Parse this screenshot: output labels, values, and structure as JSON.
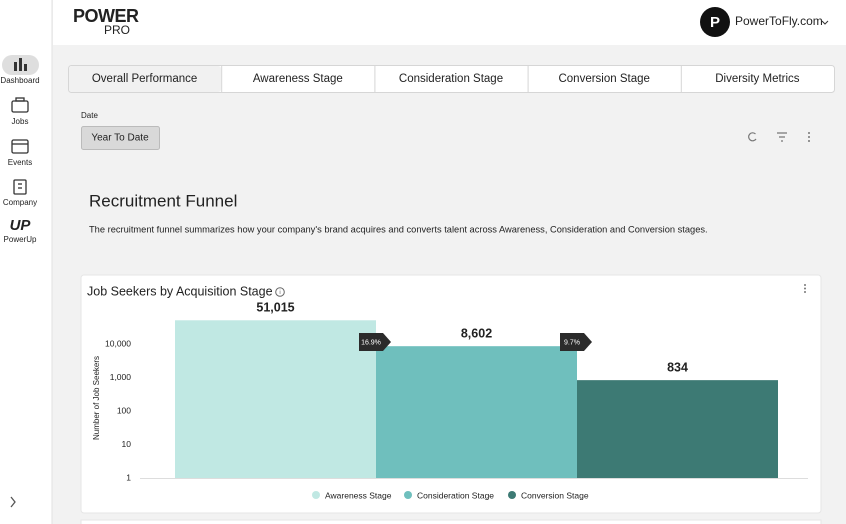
{
  "header": {
    "logo_top": "POWER",
    "logo_bottom": "PRO",
    "avatar": "P",
    "account": "PowerToFly.com"
  },
  "sidebar": {
    "items": [
      "Dashboard",
      "Jobs",
      "Events",
      "Company",
      "PowerUp"
    ]
  },
  "tabs": [
    "Overall Performance",
    "Awareness Stage",
    "Consideration Stage",
    "Conversion Stage",
    "Diversity Metrics"
  ],
  "filter": {
    "label": "Date",
    "value": "Year To Date"
  },
  "section": {
    "title": "Recruitment Funnel",
    "description": "The recruitment funnel summarizes how your company's brand acquires and converts talent across Awareness, Consideration and Conversion stages."
  },
  "chart_data": {
    "type": "bar",
    "title": "Job Seekers by Acquisition Stage",
    "y_label": "Number of Job Seekers",
    "categories": [
      "Awareness Stage",
      "Consideration Stage",
      "Conversion Stage"
    ],
    "values": [
      51015,
      8602,
      834
    ],
    "value_labels": [
      "51,015",
      "8,602",
      "834"
    ],
    "colors": [
      "#c0e8e3",
      "#6fbfbd",
      "#3d7a74"
    ],
    "conversion_rates": [
      16.9,
      9.7
    ],
    "conversion_rate_labels": [
      "16.9%",
      "9.7%"
    ],
    "log_scale": true,
    "grid": false,
    "ylim": [
      1,
      100000
    ],
    "yticks": [
      1,
      10,
      100,
      {
        "value": 1000,
        "label": "1,000"
      },
      {
        "value": 10000,
        "label": "10,000"
      }
    ]
  }
}
